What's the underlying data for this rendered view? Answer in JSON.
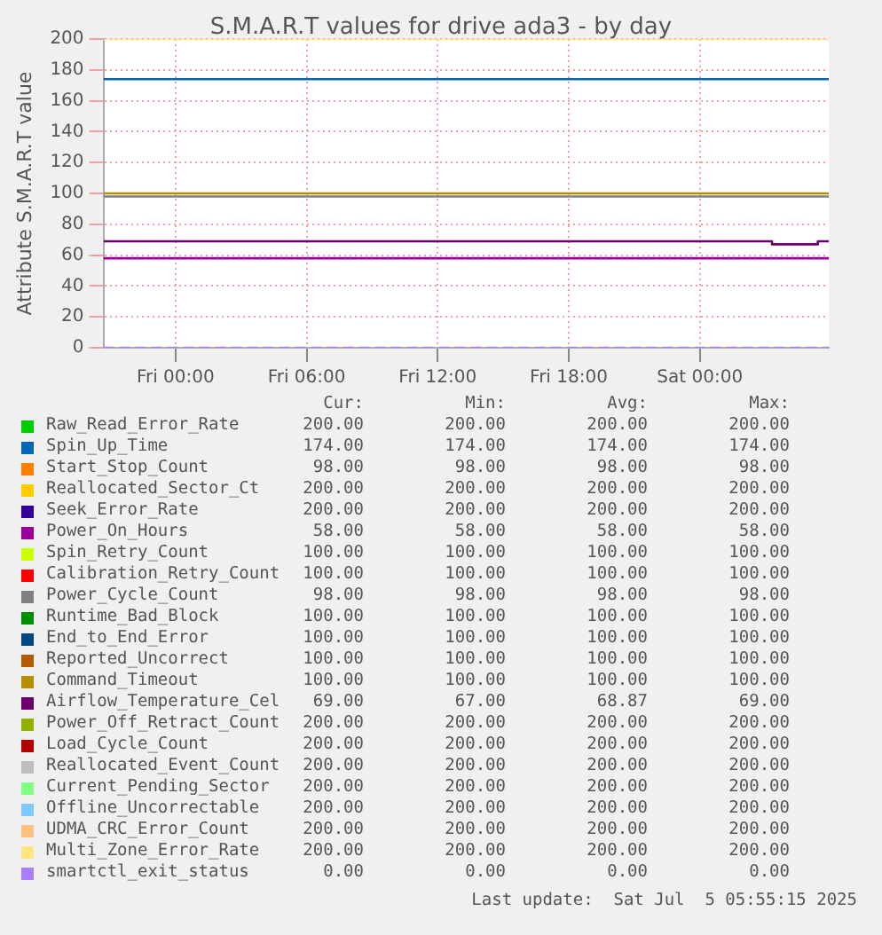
{
  "chart_data": {
    "type": "line",
    "title": "S.M.A.R.T values for drive ada3 - by day",
    "ylabel": "Attribute S.M.A.R.T value",
    "xlim": [
      "2025-07-03T20:42",
      "2025-07-05T05:54"
    ],
    "ylim": [
      0,
      200
    ],
    "xticks": [
      {
        "value": "2025-07-04T00:00",
        "label": "Fri 00:00"
      },
      {
        "value": "2025-07-04T06:00",
        "label": "Fri 06:00"
      },
      {
        "value": "2025-07-04T12:00",
        "label": "Fri 12:00"
      },
      {
        "value": "2025-07-04T18:00",
        "label": "Fri 18:00"
      },
      {
        "value": "2025-07-05T00:00",
        "label": "Sat 00:00"
      }
    ],
    "yticks": [
      0,
      20,
      40,
      60,
      80,
      100,
      120,
      140,
      160,
      180,
      200
    ],
    "grid": true,
    "legend": "bottom",
    "marker": "none",
    "line_style": "solid",
    "x": [
      "2025-07-03T20:42",
      "2025-07-05T05:54"
    ],
    "series": [
      {
        "name": "Raw_Read_Error_Rate",
        "color": "#00cc00",
        "values": [
          null,
          null
        ]
      },
      {
        "name": "Spin_Up_Time",
        "color": "#0066b3",
        "values": [
          174,
          174
        ]
      },
      {
        "name": "Start_Stop_Count",
        "color": "#ff8000",
        "values": [
          null,
          null
        ]
      },
      {
        "name": "Reallocated_Sector_Ct",
        "color": "#ffcc00",
        "values": [
          null,
          null
        ]
      },
      {
        "name": "Seek_Error_Rate",
        "color": "#330099",
        "values": [
          null,
          null
        ]
      },
      {
        "name": "Power_On_Hours",
        "color": "#990099",
        "values": [
          58,
          58
        ]
      },
      {
        "name": "Spin_Retry_Count",
        "color": "#ccff00",
        "values": [
          null,
          null
        ]
      },
      {
        "name": "Calibration_Retry_Count",
        "color": "#ff0000",
        "values": [
          null,
          null
        ]
      },
      {
        "name": "Power_Cycle_Count",
        "color": "#808080",
        "values": [
          98,
          98
        ]
      },
      {
        "name": "Runtime_Bad_Block",
        "color": "#008f00",
        "values": [
          null,
          null
        ]
      },
      {
        "name": "End_to_End_Error",
        "color": "#00487d",
        "values": [
          null,
          null
        ]
      },
      {
        "name": "Reported_Uncorrect",
        "color": "#b35a00",
        "values": [
          null,
          null
        ]
      },
      {
        "name": "Command_Timeout",
        "color": "#b38f00",
        "values": [
          100,
          100
        ]
      },
      {
        "name": "Airflow_Temperature_Cel",
        "color": "#6b006b",
        "type": "step",
        "x": [
          "2025-07-03T20:42",
          "2025-07-05T03:18",
          "2025-07-05T05:24",
          "2025-07-05T05:54"
        ],
        "values": [
          69,
          67,
          69,
          69
        ]
      },
      {
        "name": "Power_Off_Retract_Count",
        "color": "#8fb300",
        "values": [
          null,
          null
        ]
      },
      {
        "name": "Load_Cycle_Count",
        "color": "#b30000",
        "values": [
          null,
          null
        ]
      },
      {
        "name": "Reallocated_Event_Count",
        "color": "#bebebe",
        "values": [
          null,
          null
        ]
      },
      {
        "name": "Current_Pending_Sector",
        "color": "#80ff80",
        "values": [
          null,
          null
        ]
      },
      {
        "name": "Offline_Uncorrectable",
        "color": "#80c9ff",
        "values": [
          null,
          null
        ]
      },
      {
        "name": "UDMA_CRC_Error_Count",
        "color": "#ffc080",
        "values": [
          null,
          null
        ]
      },
      {
        "name": "Multi_Zone_Error_Rate",
        "color": "#ffe680",
        "values": [
          200,
          200
        ]
      },
      {
        "name": "smartctl_exit_status",
        "color": "#aa80ff",
        "line_style": "dashed",
        "values": [
          0,
          0
        ]
      }
    ],
    "annotations": [
      "Cur:",
      "Min:",
      "Avg:",
      "Max:",
      "200.00",
      "200.00",
      "200.00",
      "200.00",
      "174.00",
      "174.00",
      "174.00",
      "174.00",
      "98.00",
      "98.00",
      "98.00",
      "98.00",
      "200.00",
      "200.00",
      "200.00",
      "200.00",
      "200.00",
      "200.00",
      "200.00",
      "200.00",
      "58.00",
      "58.00",
      "58.00",
      "58.00",
      "100.00",
      "100.00",
      "100.00",
      "100.00",
      "100.00",
      "100.00",
      "100.00",
      "100.00",
      "98.00",
      "98.00",
      "98.00",
      "98.00",
      "100.00",
      "100.00",
      "100.00",
      "100.00",
      "100.00",
      "100.00",
      "100.00",
      "100.00",
      "100.00",
      "100.00",
      "100.00",
      "100.00",
      "100.00",
      "100.00",
      "100.00",
      "100.00",
      "69.00",
      "67.00",
      "68.87",
      "69.00",
      "200.00",
      "200.00",
      "200.00",
      "200.00",
      "200.00",
      "200.00",
      "200.00",
      "200.00",
      "200.00",
      "200.00",
      "200.00",
      "200.00",
      "200.00",
      "200.00",
      "200.00",
      "200.00",
      "200.00",
      "200.00",
      "200.00",
      "200.00",
      "200.00",
      "200.00",
      "200.00",
      "200.00",
      "200.00",
      "200.00",
      "200.00",
      "200.00",
      "0.00",
      "0.00",
      "0.00",
      "0.00",
      "Last update:  Sat Jul  5 05:55:15 2025"
    ]
  }
}
